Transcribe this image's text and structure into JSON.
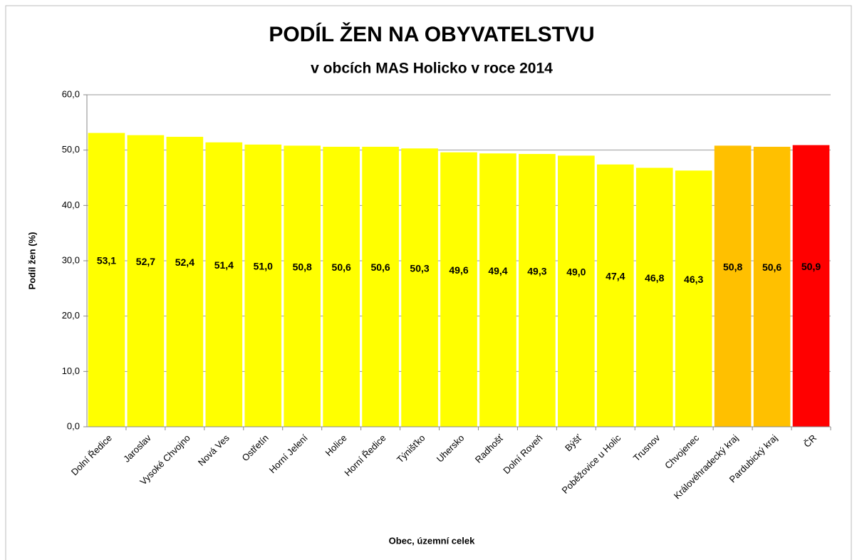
{
  "chart_data": {
    "type": "bar",
    "title": "PODÍL ŽEN NA OBYVATELSTVU",
    "subtitle": "v obcích MAS Holicko v roce 2014",
    "x_label": "Obec, územní celek",
    "y_label": "Podíl žen (%)",
    "categories": [
      "Dolní Ředice",
      "Jaroslav",
      "Vysoké Chvojno",
      "Nová Ves",
      "Ostřetín",
      "Horní Jelení",
      "Holice",
      "Horní Ředice",
      "Týnišťko",
      "Uhersko",
      "Radhošť",
      "Dolní Roveň",
      "Býšť",
      "Poběžovice u Holic",
      "Trusnov",
      "Chvojenec",
      "Královéhradecký kraj",
      "Pardubický kraj",
      "ČR"
    ],
    "values": [
      53.1,
      52.7,
      52.4,
      51.4,
      51.0,
      50.8,
      50.6,
      50.6,
      50.3,
      49.6,
      49.4,
      49.3,
      49.0,
      47.4,
      46.8,
      46.3,
      50.8,
      50.6,
      50.9
    ],
    "value_labels": [
      "53,1",
      "52,7",
      "52,4",
      "51,4",
      "51,0",
      "50,8",
      "50,6",
      "50,6",
      "50,3",
      "49,6",
      "49,4",
      "49,3",
      "49,0",
      "47,4",
      "46,8",
      "46,3",
      "50,8",
      "50,6",
      "50,9"
    ],
    "colors": [
      "#ffff00",
      "#ffff00",
      "#ffff00",
      "#ffff00",
      "#ffff00",
      "#ffff00",
      "#ffff00",
      "#ffff00",
      "#ffff00",
      "#ffff00",
      "#ffff00",
      "#ffff00",
      "#ffff00",
      "#ffff00",
      "#ffff00",
      "#ffff00",
      "#ffc000",
      "#ffc000",
      "#ff0000"
    ],
    "ylim": [
      0,
      60
    ],
    "yticks": [
      {
        "value": 0,
        "label": "0,0"
      },
      {
        "value": 10,
        "label": "10,0"
      },
      {
        "value": 20,
        "label": "20,0"
      },
      {
        "value": 30,
        "label": "30,0"
      },
      {
        "value": 40,
        "label": "40,0"
      },
      {
        "value": 50,
        "label": "50,0"
      },
      {
        "value": 60,
        "label": "60,0"
      }
    ],
    "grid": true
  }
}
